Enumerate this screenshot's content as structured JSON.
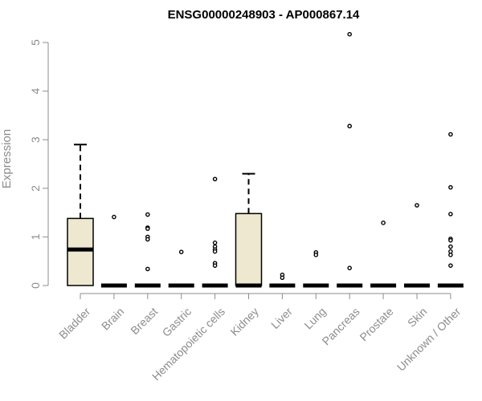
{
  "chart_data": {
    "type": "box",
    "title": "ENSG00000248903 - AP000867.14",
    "xlabel": "",
    "ylabel": "Expression",
    "ylim": [
      0,
      5.2
    ],
    "yticks": [
      0,
      1,
      2,
      3,
      4,
      5
    ],
    "box_fill": "#ede8cf",
    "categories": [
      "Bladder",
      "Brain",
      "Breast",
      "Gastric",
      "Hematopoietic cells",
      "Kidney",
      "Liver",
      "Lung",
      "Pancreas",
      "Prostate",
      "Skin",
      "Unknown / Other"
    ],
    "boxes": [
      {
        "min": 0,
        "q1": 0,
        "median": 0.74,
        "q3": 1.38,
        "max": 2.9,
        "outliers": []
      },
      {
        "min": 0,
        "q1": 0,
        "median": 0,
        "q3": 0,
        "max": 0,
        "outliers": [
          1.41
        ]
      },
      {
        "min": 0,
        "q1": 0,
        "median": 0,
        "q3": 0,
        "max": 0,
        "outliers": [
          1.46,
          1.19,
          1.17,
          1.0,
          0.95,
          0.34
        ]
      },
      {
        "min": 0,
        "q1": 0,
        "median": 0,
        "q3": 0,
        "max": 0,
        "outliers": [
          0.69
        ]
      },
      {
        "min": 0,
        "q1": 0,
        "median": 0,
        "q3": 0,
        "max": 0,
        "outliers": [
          2.19,
          0.88,
          0.8,
          0.74,
          0.7,
          0.46,
          0.41
        ]
      },
      {
        "min": 0,
        "q1": 0,
        "median": 0,
        "q3": 1.48,
        "max": 2.3,
        "outliers": []
      },
      {
        "min": 0,
        "q1": 0,
        "median": 0,
        "q3": 0,
        "max": 0,
        "outliers": [
          0.22,
          0.16
        ]
      },
      {
        "min": 0,
        "q1": 0,
        "median": 0,
        "q3": 0,
        "max": 0,
        "outliers": [
          0.68,
          0.63
        ]
      },
      {
        "min": 0,
        "q1": 0,
        "median": 0,
        "q3": 0,
        "max": 0,
        "outliers": [
          5.17,
          3.28,
          0.36
        ]
      },
      {
        "min": 0,
        "q1": 0,
        "median": 0,
        "q3": 0,
        "max": 0,
        "outliers": [
          1.29
        ]
      },
      {
        "min": 0,
        "q1": 0,
        "median": 0,
        "q3": 0,
        "max": 0,
        "outliers": [
          1.65
        ]
      },
      {
        "min": 0,
        "q1": 0,
        "median": 0,
        "q3": 0,
        "max": 0,
        "outliers": [
          3.11,
          2.02,
          1.47,
          0.96,
          0.93,
          0.8,
          0.7,
          0.63,
          0.41
        ]
      }
    ]
  }
}
